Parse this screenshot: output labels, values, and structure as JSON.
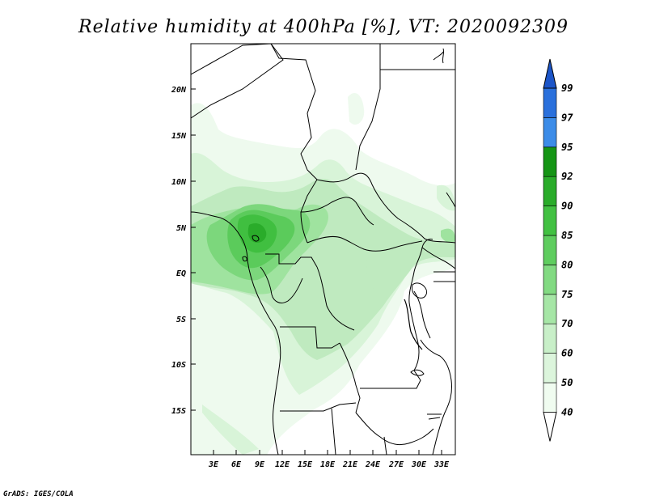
{
  "title": "Relative humidity at 400hPa [%], VT: 2020092309",
  "credit": "GrADS: IGES/COLA",
  "lat_labels": [
    "20N",
    "15N",
    "10N",
    "5N",
    "EQ",
    "5S",
    "10S",
    "15S"
  ],
  "lon_labels": [
    "3E",
    "6E",
    "9E",
    "12E",
    "15E",
    "18E",
    "21E",
    "24E",
    "27E",
    "30E",
    "33E"
  ],
  "colorbar": {
    "labels": [
      "40",
      "50",
      "60",
      "70",
      "75",
      "80",
      "85",
      "90",
      "92",
      "95",
      "97",
      "99"
    ],
    "colors": [
      "#f0fcf0",
      "#dcf5dc",
      "#c8efc8",
      "#a6e6a6",
      "#82da82",
      "#5fcd5f",
      "#42c142",
      "#2aac2a",
      "#159515",
      "#3c8ce8",
      "#2a70dc",
      "#1c55c8"
    ]
  },
  "chart_data": {
    "type": "heatmap",
    "variable": "Relative humidity at 400hPa",
    "units": "%",
    "valid_time": "2020092309",
    "lon_range": [
      0,
      34
    ],
    "lat_range": [
      -20,
      24
    ],
    "levels": [
      40,
      50,
      60,
      70,
      75,
      80,
      85,
      90,
      92,
      95,
      97,
      99
    ]
  }
}
